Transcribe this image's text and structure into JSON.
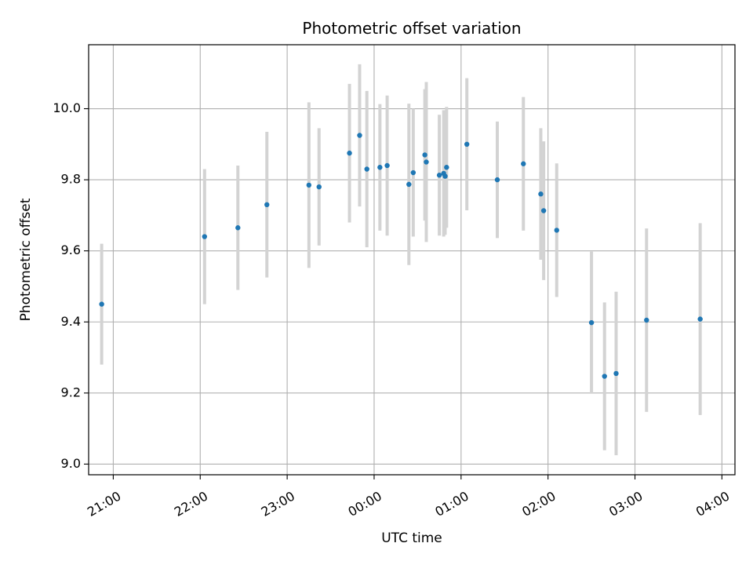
{
  "chart_data": {
    "type": "scatter",
    "title": "Photometric offset variation",
    "xlabel": "UTC time",
    "ylabel": "Photometric offset",
    "x_ticks": [
      "21:00",
      "22:00",
      "23:00",
      "00:00",
      "01:00",
      "02:00",
      "03:00",
      "04:00"
    ],
    "y_ticks": [
      "9.0",
      "9.2",
      "9.4",
      "9.6",
      "9.8",
      "10.0"
    ],
    "xlim": [
      "20:43",
      "04:09"
    ],
    "ylim": [
      8.97,
      10.18
    ],
    "grid": true,
    "colors": {
      "point": "#1f77b4",
      "errorbar": "#d3d3d3",
      "grid": "#b0b0b0"
    },
    "points": [
      {
        "x": "20:52",
        "y": 9.45,
        "yerr": 0.17
      },
      {
        "x": "22:03",
        "y": 9.64,
        "yerr": 0.19
      },
      {
        "x": "22:26",
        "y": 9.665,
        "yerr": 0.175
      },
      {
        "x": "22:46",
        "y": 9.73,
        "yerr": 0.205
      },
      {
        "x": "23:15",
        "y": 9.785,
        "yerr": 0.233
      },
      {
        "x": "23:22",
        "y": 9.78,
        "yerr": 0.165
      },
      {
        "x": "23:43",
        "y": 9.875,
        "yerr": 0.195
      },
      {
        "x": "23:50",
        "y": 9.925,
        "yerr": 0.2
      },
      {
        "x": "23:55",
        "y": 9.83,
        "yerr": 0.22
      },
      {
        "x": "00:04",
        "y": 9.835,
        "yerr": 0.178
      },
      {
        "x": "00:09",
        "y": 9.84,
        "yerr": 0.197
      },
      {
        "x": "00:24",
        "y": 9.787,
        "yerr": 0.227
      },
      {
        "x": "00:27",
        "y": 9.82,
        "yerr": 0.18
      },
      {
        "x": "00:35",
        "y": 9.87,
        "yerr": 0.185
      },
      {
        "x": "00:36",
        "y": 9.85,
        "yerr": 0.225
      },
      {
        "x": "00:45",
        "y": 9.813,
        "yerr": 0.17
      },
      {
        "x": "00:48",
        "y": 9.818,
        "yerr": 0.178
      },
      {
        "x": "00:49",
        "y": 9.81,
        "yerr": 0.165
      },
      {
        "x": "00:50",
        "y": 9.835,
        "yerr": 0.17
      },
      {
        "x": "01:04",
        "y": 9.9,
        "yerr": 0.186
      },
      {
        "x": "01:25",
        "y": 9.8,
        "yerr": 0.164
      },
      {
        "x": "01:43",
        "y": 9.845,
        "yerr": 0.188
      },
      {
        "x": "01:55",
        "y": 9.76,
        "yerr": 0.185
      },
      {
        "x": "01:57",
        "y": 9.713,
        "yerr": 0.195
      },
      {
        "x": "02:06",
        "y": 9.658,
        "yerr": 0.188
      },
      {
        "x": "02:30",
        "y": 9.398,
        "yerr": 0.2
      },
      {
        "x": "02:39",
        "y": 9.247,
        "yerr": 0.208
      },
      {
        "x": "02:47",
        "y": 9.255,
        "yerr": 0.23
      },
      {
        "x": "03:08",
        "y": 9.405,
        "yerr": 0.258
      },
      {
        "x": "03:45",
        "y": 9.408,
        "yerr": 0.27
      }
    ]
  }
}
